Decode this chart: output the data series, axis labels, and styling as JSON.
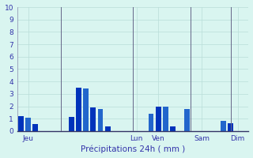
{
  "xlabel": "Précipitations 24h ( mm )",
  "ylim": [
    0,
    10
  ],
  "background_color": "#d9f5f0",
  "bar_color_a": "#0033bb",
  "bar_color_b": "#3377dd",
  "grid_color": "#b8ddd8",
  "axis_color": "#8888aa",
  "label_color": "#3333aa",
  "values": [
    1.2,
    1.1,
    0.55,
    0.0,
    0.0,
    0.0,
    0.0,
    1.15,
    3.5,
    3.45,
    1.9,
    1.8,
    0.35,
    0.0,
    0.0,
    0.0,
    0.0,
    0.0,
    1.4,
    2.0,
    2.0,
    0.35,
    0.0,
    1.75,
    0.0,
    0.0,
    0.0,
    0.0,
    0.8,
    0.65,
    0.0,
    0.0
  ],
  "bar_colors": [
    "#0033bb",
    "#2266cc",
    "#0033bb",
    "#0033bb",
    "#0033bb",
    "#0033bb",
    "#0033bb",
    "#0033bb",
    "#0033bb",
    "#2266cc",
    "#0033bb",
    "#2266cc",
    "#0033bb",
    "#0033bb",
    "#0033bb",
    "#0033bb",
    "#0033bb",
    "#0033bb",
    "#2266cc",
    "#0033bb",
    "#2266cc",
    "#0033bb",
    "#0033bb",
    "#2266cc",
    "#0033bb",
    "#0033bb",
    "#0033bb",
    "#0033bb",
    "#2266cc",
    "#0033bb",
    "#0033bb",
    "#0033bb"
  ],
  "n_bars": 32,
  "day_labels": [
    "Jeu",
    "Lun",
    "Ven",
    "Sam",
    "Dim"
  ],
  "day_x_positions": [
    1.5,
    16.5,
    19.5,
    25.5,
    30.5
  ],
  "vline_positions": [
    6.0,
    16.0,
    24.0,
    29.5
  ]
}
